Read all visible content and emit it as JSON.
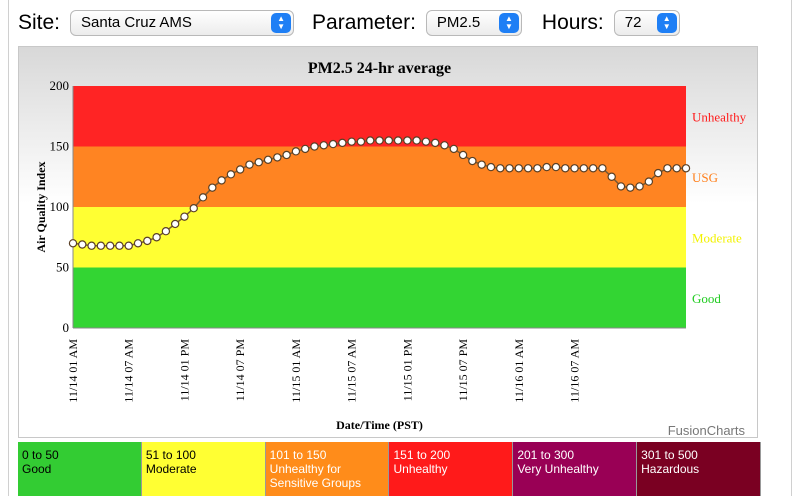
{
  "controls": {
    "site_label": "Site:",
    "site_value": "Santa Cruz AMS",
    "parameter_label": "Parameter:",
    "parameter_value": "PM2.5",
    "hours_label": "Hours:",
    "hours_value": "72"
  },
  "chart_data": {
    "type": "line",
    "title": "PM2.5 24-hr average",
    "xlabel": "Date/Time (PST)",
    "ylabel": "Air Quality Index",
    "ylim": [
      0,
      200
    ],
    "yticks": [
      "0",
      "50",
      "100",
      "150",
      "200"
    ],
    "xtick_labels": [
      "11/14 01 AM",
      "11/14 07 AM",
      "11/14 01 PM",
      "11/14 07 PM",
      "11/15 01 AM",
      "11/15 07 AM",
      "11/15 01 PM",
      "11/15 07 PM",
      "11/16 01 AM",
      "11/16 07 AM"
    ],
    "x_start": "11/14 01 AM",
    "x_interval_hours": 1,
    "values": [
      70,
      69,
      68,
      68,
      68,
      68,
      68,
      70,
      72,
      75,
      80,
      86,
      92,
      99,
      108,
      116,
      122,
      127,
      131,
      135,
      137,
      139,
      141,
      143,
      146,
      148,
      150,
      151,
      152,
      153,
      154,
      154,
      155,
      155,
      155,
      155,
      155,
      155,
      154,
      153,
      151,
      148,
      143,
      138,
      135,
      133,
      132,
      132,
      132,
      132,
      132,
      133,
      133,
      132,
      132,
      132,
      132,
      132,
      125,
      117,
      116,
      117,
      121,
      128,
      132,
      132,
      132
    ],
    "bands": [
      {
        "from": 0,
        "to": 50,
        "label": "Good",
        "color": "#33d533",
        "label_color": "#22cc22"
      },
      {
        "from": 50,
        "to": 100,
        "label": "Moderate",
        "color": "#ffff33",
        "label_color": "#f2f200"
      },
      {
        "from": 100,
        "to": 150,
        "label": "USG",
        "color": "#ff8422",
        "label_color": "#ff7f1a"
      },
      {
        "from": 150,
        "to": 200,
        "label": "Unhealthy",
        "color": "#ff2424",
        "label_color": "#ff1a1a"
      }
    ],
    "watermark": "FusionCharts"
  },
  "legend": [
    {
      "range": "0 to 50",
      "label": "Good",
      "label2": "",
      "color": "#33cc33",
      "text_color": "#000000"
    },
    {
      "range": "51 to 100",
      "label": "Moderate",
      "label2": "",
      "color": "#ffff33",
      "text_color": "#000000"
    },
    {
      "range": "101 to 150",
      "label": "Unhealthy for",
      "label2": "Sensitive Groups",
      "color": "#ff8c1a",
      "text_color": "#ffffff"
    },
    {
      "range": "151 to 200",
      "label": "Unhealthy",
      "label2": "",
      "color": "#ff1a1a",
      "text_color": "#ffffff"
    },
    {
      "range": "201 to 300",
      "label": "Very Unhealthy",
      "label2": "",
      "color": "#990055",
      "text_color": "#ffffff"
    },
    {
      "range": "301 to 500",
      "label": "Hazardous",
      "label2": "",
      "color": "#7a0022",
      "text_color": "#ffffff"
    }
  ]
}
